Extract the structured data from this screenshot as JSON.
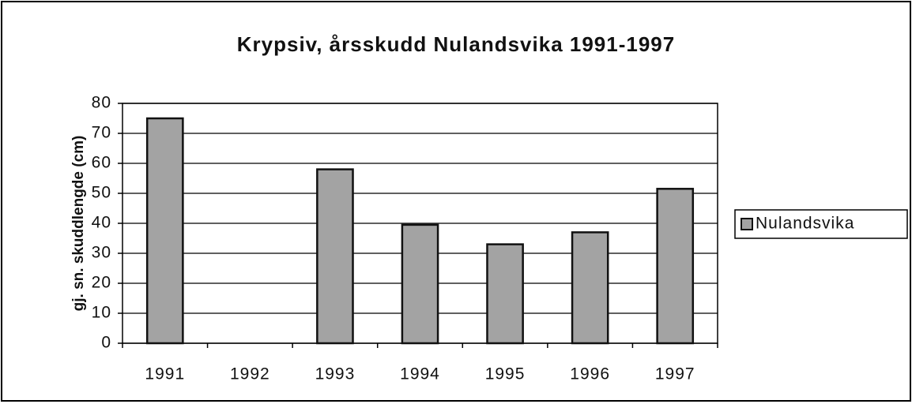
{
  "chart_data": {
    "type": "bar",
    "title": "Krypsiv, årsskudd Nulandsvika 1991-1997",
    "y_label": "gj. sn. skuddlengde (cm)",
    "categories": [
      "1991",
      "1992",
      "1993",
      "1994",
      "1995",
      "1996",
      "1997"
    ],
    "series": [
      {
        "name": "Nulandsvika",
        "color": "#a3a3a3",
        "values": [
          75,
          null,
          58,
          39.5,
          33,
          37,
          51.5
        ]
      }
    ],
    "ylim": [
      0,
      80
    ],
    "yticks": [
      0,
      10,
      20,
      30,
      40,
      50,
      60,
      70,
      80
    ],
    "grid": true,
    "legend": "right"
  }
}
